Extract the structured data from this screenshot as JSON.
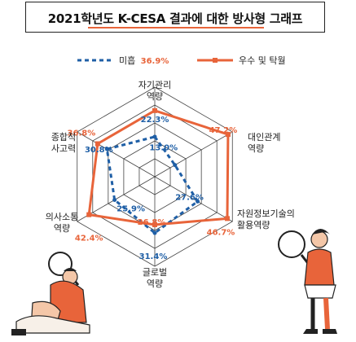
{
  "chart_data": {
    "type": "radar",
    "title": "2021학년도 K-CESA 결과에 대한 방사형 그래프",
    "categories": [
      [
        "자기관리",
        "역량"
      ],
      [
        "대인관계",
        "역량"
      ],
      [
        "자원정보기술의",
        "활용역량"
      ],
      [
        "글로벌",
        "역량"
      ],
      [
        "의사소통",
        "역량"
      ],
      [
        "종합적",
        "사고력"
      ]
    ],
    "series": [
      {
        "name": "미흡",
        "values": [
          22.3,
          13.0,
          27.6,
          31.4,
          25.9,
          30.8
        ],
        "labels": [
          "22.3%",
          "13.0%",
          "27.6%",
          "31.4%",
          "25.9%",
          "30.8%"
        ],
        "color": "#1f5fa6",
        "style": "dashed"
      },
      {
        "name": "우수 및 탁월",
        "values": [
          36.9,
          47.2,
          46.7,
          26.8,
          42.4,
          36.8
        ],
        "labels": [
          "36.9%",
          "47.2%",
          "46.7%",
          "26.8%",
          "42.4%",
          "36.8%"
        ],
        "color": "#e8643a",
        "style": "solid"
      }
    ],
    "rmax": 50,
    "grid_levels": 5
  }
}
